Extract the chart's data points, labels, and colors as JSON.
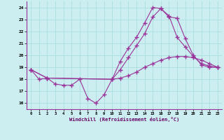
{
  "xlabel": "Windchill (Refroidissement éolien,°C)",
  "bg_color": "#cceef0",
  "grid_color": "#aadddd",
  "line_color": "#993399",
  "xlim": [
    -0.5,
    23.5
  ],
  "ylim": [
    15.5,
    24.5
  ],
  "yticks": [
    16,
    17,
    18,
    19,
    20,
    21,
    22,
    23,
    24
  ],
  "xticks": [
    0,
    1,
    2,
    3,
    4,
    5,
    6,
    7,
    8,
    9,
    10,
    11,
    12,
    13,
    14,
    15,
    16,
    17,
    18,
    19,
    20,
    21,
    22,
    23
  ],
  "line1_x": [
    0,
    1,
    2,
    3,
    4,
    5,
    6,
    7,
    8,
    9,
    10,
    11,
    12,
    13,
    14,
    15,
    16,
    17,
    18,
    19,
    20,
    21,
    22,
    23
  ],
  "line1_y": [
    18.8,
    18.0,
    18.1,
    17.6,
    17.5,
    17.5,
    18.0,
    16.4,
    16.0,
    16.7,
    18.0,
    19.5,
    20.6,
    21.5,
    22.7,
    24.0,
    23.9,
    23.2,
    23.1,
    21.4,
    20.0,
    19.2,
    19.0,
    19.0
  ],
  "line2_x": [
    0,
    2,
    10,
    11,
    12,
    13,
    14,
    15,
    16,
    17,
    18,
    19,
    20,
    21,
    22,
    23
  ],
  "line2_y": [
    18.8,
    18.1,
    18.0,
    18.8,
    19.8,
    20.8,
    21.8,
    23.2,
    23.9,
    23.3,
    21.5,
    20.7,
    19.9,
    19.3,
    19.1,
    19.0
  ],
  "line3_x": [
    0,
    2,
    10,
    11,
    12,
    13,
    14,
    15,
    16,
    17,
    18,
    19,
    20,
    21,
    22,
    23
  ],
  "line3_y": [
    18.8,
    18.1,
    18.0,
    18.1,
    18.3,
    18.6,
    19.0,
    19.3,
    19.6,
    19.8,
    19.9,
    19.9,
    19.8,
    19.6,
    19.3,
    19.0
  ]
}
